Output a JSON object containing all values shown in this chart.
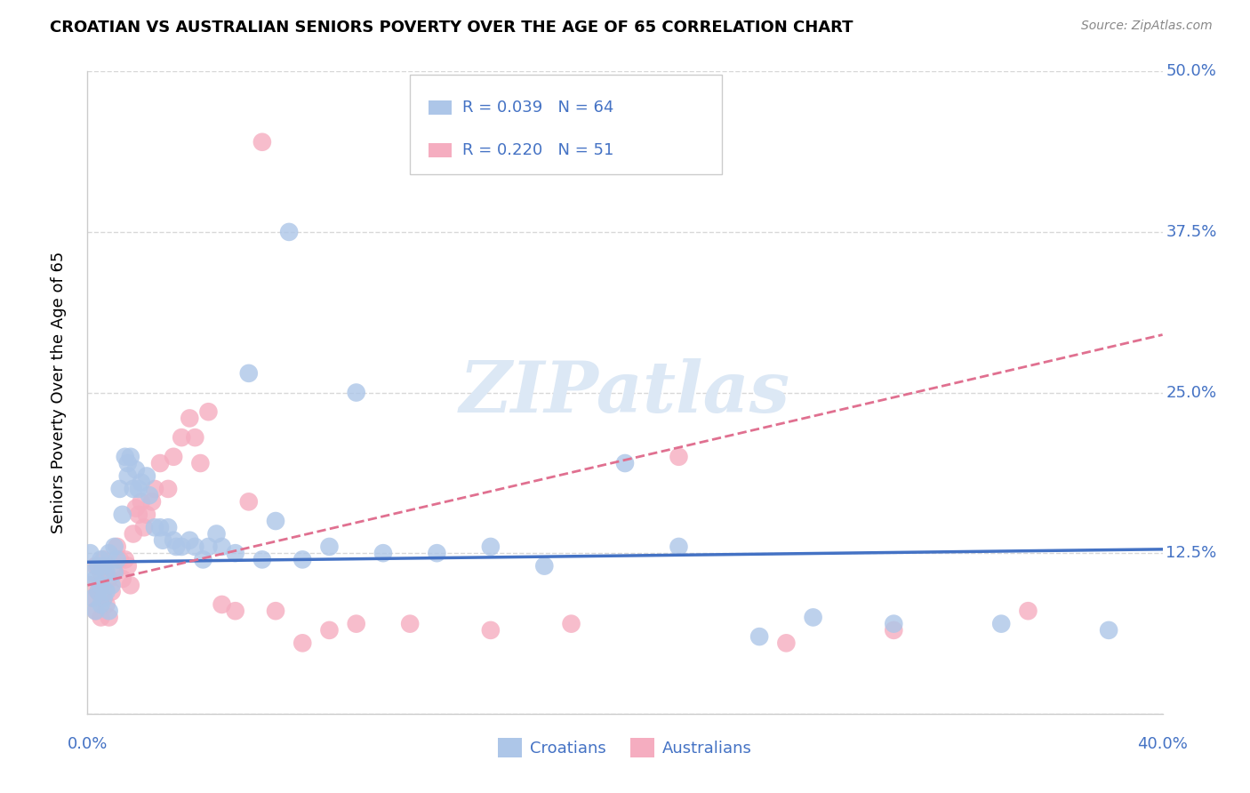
{
  "title": "CROATIAN VS AUSTRALIAN SENIORS POVERTY OVER THE AGE OF 65 CORRELATION CHART",
  "source": "Source: ZipAtlas.com",
  "ylabel": "Seniors Poverty Over the Age of 65",
  "xlim": [
    0.0,
    0.4
  ],
  "ylim": [
    0.0,
    0.5
  ],
  "xticks": [
    0.0,
    0.1,
    0.2,
    0.3,
    0.4
  ],
  "yticks": [
    0.0,
    0.125,
    0.25,
    0.375,
    0.5
  ],
  "croatians_R": 0.039,
  "croatians_N": 64,
  "australians_R": 0.22,
  "australians_N": 51,
  "bg_color": "#ffffff",
  "grid_color": "#d8d8d8",
  "croatian_color": "#adc6e8",
  "australian_color": "#f5adc0",
  "croatian_line_color": "#4472c4",
  "australian_line_color": "#e07090",
  "legend_text_color": "#4472c4",
  "watermark_color": "#dce8f5",
  "croatians_x": [
    0.001,
    0.002,
    0.002,
    0.003,
    0.003,
    0.004,
    0.004,
    0.005,
    0.005,
    0.005,
    0.006,
    0.006,
    0.007,
    0.007,
    0.008,
    0.008,
    0.009,
    0.01,
    0.01,
    0.011,
    0.012,
    0.013,
    0.014,
    0.015,
    0.015,
    0.016,
    0.017,
    0.018,
    0.019,
    0.02,
    0.022,
    0.023,
    0.025,
    0.027,
    0.028,
    0.03,
    0.032,
    0.033,
    0.035,
    0.038,
    0.04,
    0.043,
    0.045,
    0.048,
    0.05,
    0.055,
    0.06,
    0.065,
    0.07,
    0.075,
    0.08,
    0.09,
    0.1,
    0.11,
    0.13,
    0.15,
    0.17,
    0.2,
    0.22,
    0.25,
    0.27,
    0.3,
    0.34,
    0.38
  ],
  "croatians_y": [
    0.125,
    0.11,
    0.09,
    0.105,
    0.08,
    0.095,
    0.115,
    0.1,
    0.12,
    0.085,
    0.115,
    0.09,
    0.11,
    0.095,
    0.125,
    0.08,
    0.1,
    0.13,
    0.11,
    0.12,
    0.175,
    0.155,
    0.2,
    0.185,
    0.195,
    0.2,
    0.175,
    0.19,
    0.175,
    0.18,
    0.185,
    0.17,
    0.145,
    0.145,
    0.135,
    0.145,
    0.135,
    0.13,
    0.13,
    0.135,
    0.13,
    0.12,
    0.13,
    0.14,
    0.13,
    0.125,
    0.265,
    0.12,
    0.15,
    0.375,
    0.12,
    0.13,
    0.25,
    0.125,
    0.125,
    0.13,
    0.115,
    0.195,
    0.13,
    0.06,
    0.075,
    0.07,
    0.07,
    0.065
  ],
  "australians_x": [
    0.001,
    0.002,
    0.003,
    0.003,
    0.004,
    0.005,
    0.005,
    0.006,
    0.006,
    0.007,
    0.008,
    0.008,
    0.009,
    0.01,
    0.011,
    0.012,
    0.013,
    0.014,
    0.015,
    0.016,
    0.017,
    0.018,
    0.019,
    0.02,
    0.021,
    0.022,
    0.024,
    0.025,
    0.027,
    0.03,
    0.032,
    0.035,
    0.038,
    0.04,
    0.042,
    0.045,
    0.05,
    0.055,
    0.06,
    0.065,
    0.07,
    0.08,
    0.09,
    0.1,
    0.12,
    0.15,
    0.18,
    0.22,
    0.26,
    0.3,
    0.35
  ],
  "australians_y": [
    0.1,
    0.09,
    0.115,
    0.08,
    0.095,
    0.11,
    0.075,
    0.09,
    0.12,
    0.085,
    0.105,
    0.075,
    0.095,
    0.11,
    0.13,
    0.12,
    0.105,
    0.12,
    0.115,
    0.1,
    0.14,
    0.16,
    0.155,
    0.165,
    0.145,
    0.155,
    0.165,
    0.175,
    0.195,
    0.175,
    0.2,
    0.215,
    0.23,
    0.215,
    0.195,
    0.235,
    0.085,
    0.08,
    0.165,
    0.445,
    0.08,
    0.055,
    0.065,
    0.07,
    0.07,
    0.065,
    0.07,
    0.2,
    0.055,
    0.065,
    0.08
  ],
  "croatian_line_x": [
    0.0,
    0.4
  ],
  "croatian_line_y": [
    0.118,
    0.128
  ],
  "australian_line_x": [
    0.0,
    0.4
  ],
  "australian_line_y": [
    0.1,
    0.295
  ]
}
